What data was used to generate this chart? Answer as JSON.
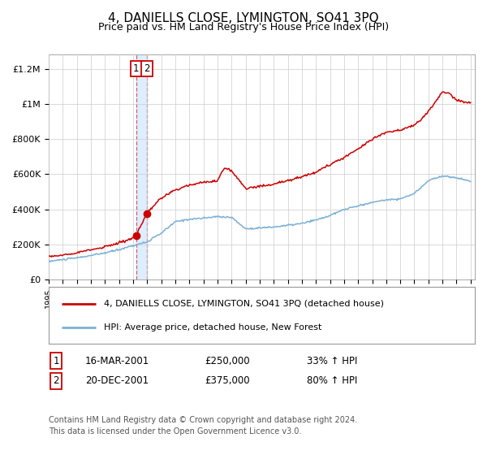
{
  "title": "4, DANIELLS CLOSE, LYMINGTON, SO41 3PQ",
  "subtitle": "Price paid vs. HM Land Registry's House Price Index (HPI)",
  "ylabel_ticks": [
    "£0",
    "£200K",
    "£400K",
    "£600K",
    "£800K",
    "£1M",
    "£1.2M"
  ],
  "ytick_values": [
    0,
    200000,
    400000,
    600000,
    800000,
    1000000,
    1200000
  ],
  "ylim": [
    0,
    1280000
  ],
  "xlim_start": 1995.0,
  "xlim_end": 2025.3,
  "sale1_date": 2001.21,
  "sale1_price": 250000,
  "sale2_date": 2001.97,
  "sale2_price": 375000,
  "legend_label_red": "4, DANIELLS CLOSE, LYMINGTON, SO41 3PQ (detached house)",
  "legend_label_blue": "HPI: Average price, detached house, New Forest",
  "annotation1_label": "1",
  "annotation1_date": "16-MAR-2001",
  "annotation1_price": "£250,000",
  "annotation1_hpi": "33% ↑ HPI",
  "annotation2_label": "2",
  "annotation2_date": "20-DEC-2001",
  "annotation2_price": "£375,000",
  "annotation2_hpi": "80% ↑ HPI",
  "footer": "Contains HM Land Registry data © Crown copyright and database right 2024.\nThis data is licensed under the Open Government Licence v3.0.",
  "red_color": "#cc0000",
  "blue_color": "#7ab0d4",
  "shade_color": "#ddeeff",
  "grid_color": "#cccccc",
  "bg_color": "#ffffff"
}
